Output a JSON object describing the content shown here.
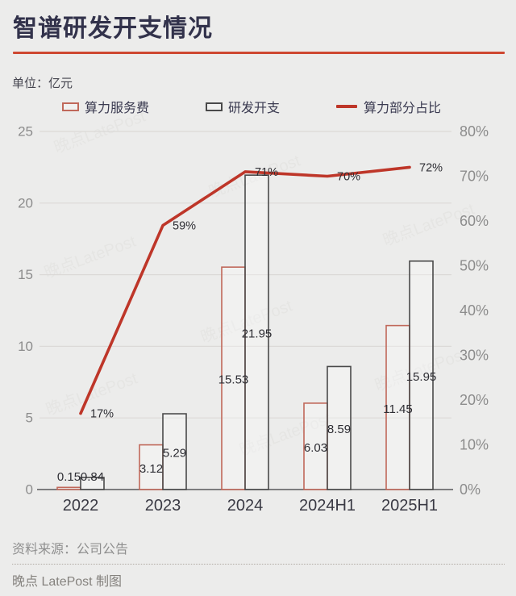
{
  "header": {
    "title": "智谱研发开支情况",
    "unit_label": "单位：亿元"
  },
  "legend": {
    "items": [
      {
        "label": "算力服务费",
        "swatch": "bar-outline",
        "color": "#C0685A"
      },
      {
        "label": "研发开支",
        "swatch": "bar-outline",
        "color": "#4A4A4A"
      },
      {
        "label": "算力部分占比",
        "swatch": "line",
        "color": "#BE3629"
      }
    ]
  },
  "chart_data": {
    "type": "bar+line combo",
    "title": "智谱研发开支情况",
    "unit": "亿元",
    "categories": [
      "2022",
      "2023",
      "2024",
      "2024H1",
      "2025H1"
    ],
    "series": [
      {
        "name": "算力服务费",
        "type": "bar",
        "axis": "left",
        "values": [
          0.15,
          3.12,
          15.53,
          6.03,
          11.45
        ],
        "labels": [
          "0.15",
          "3.12",
          "15.53",
          "6.03",
          "11.45"
        ],
        "color": "#C0685A"
      },
      {
        "name": "研发开支",
        "type": "bar",
        "axis": "left",
        "values": [
          0.84,
          5.29,
          21.95,
          8.59,
          15.95
        ],
        "labels": [
          "0.84",
          "5.29",
          "21.95",
          "8.59",
          "15.95"
        ],
        "color": "#4A4A4A"
      },
      {
        "name": "算力部分占比",
        "type": "line",
        "axis": "right",
        "values": [
          17,
          59,
          71,
          70,
          72
        ],
        "labels": [
          "17%",
          "59%",
          "71%",
          "70%",
          "72%"
        ],
        "color": "#BE3629"
      }
    ],
    "left_axis": {
      "range": [
        0,
        25
      ],
      "tick_values": [
        0,
        5,
        10,
        15,
        20,
        25
      ],
      "tick_labels": [
        "0",
        "5",
        "10",
        "15",
        "20",
        "25"
      ]
    },
    "right_axis": {
      "range": [
        0,
        80
      ],
      "tick_values": [
        0,
        10,
        20,
        30,
        40,
        50,
        60,
        70,
        80
      ],
      "tick_labels": [
        "0%",
        "10%",
        "20%",
        "30%",
        "40%",
        "50%",
        "60%",
        "70%",
        "80%"
      ]
    },
    "grid": true,
    "legend_position": "top"
  },
  "colors": {
    "background": "#ECECEB",
    "title_text": "#32324B",
    "accent_rule": "#CE4731",
    "line_series": "#BE3629",
    "bar1_stroke": "#C0685A",
    "bar2_stroke": "#4A4A4A",
    "gridline": "#DBD9D7",
    "axis_line": "#58585A",
    "axis_tick_text": "#8C8C8C",
    "category_text": "#3A3A44",
    "value_label_text": "#2E2E34"
  },
  "footer": {
    "source": "资料来源：公司公告",
    "credit": "晚点 LatePost 制图"
  },
  "watermark": "晚点LatePost"
}
